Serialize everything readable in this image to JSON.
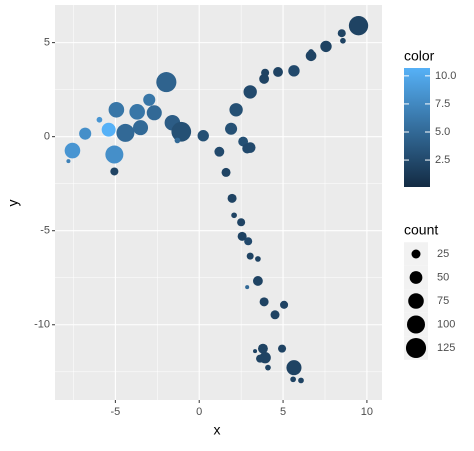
{
  "chart_data": {
    "type": "scatter",
    "x_label": "x",
    "y_label": "y",
    "xlim": [
      -8.6,
      10.9
    ],
    "ylim": [
      -14,
      7
    ],
    "xticks": [
      -5,
      0,
      5,
      10
    ],
    "yticks": [
      5,
      0,
      -5,
      -10
    ],
    "grid": true,
    "x": [
      -7.56,
      -7.8,
      -6.8,
      -5.95,
      -5.4,
      -4.94,
      -5.06,
      -5.06,
      -4.4,
      -3.7,
      -3.5,
      -2.98,
      -2.68,
      -1.96,
      -1.6,
      -1.07,
      -1.3,
      0.24,
      1.2,
      1.9,
      2.2,
      3.04,
      3.87,
      3.93,
      4.7,
      5.65,
      6.67,
      6.67,
      7.56,
      8.5,
      8.57,
      9.5,
      2.62,
      2.86,
      3.04,
      1.6,
      1.96,
      2.08,
      2.5,
      2.56,
      2.92,
      3.04,
      3.5,
      3.5,
      2.86,
      3.87,
      5.06,
      4.52,
      3.33,
      3.8,
      3.93,
      4.1,
      4.94,
      3.63,
      5.65,
      5.6,
      6.07
    ],
    "y": [
      -0.74,
      -1.3,
      0.16,
      0.9,
      0.37,
      1.43,
      -0.95,
      -1.85,
      0.2,
      1.32,
      0.48,
      1.96,
      1.27,
      2.9,
      0.74,
      0.26,
      -0.2,
      0.05,
      -0.8,
      0.42,
      1.43,
      2.38,
      3.07,
      3.4,
      3.44,
      3.5,
      4.3,
      4.5,
      4.8,
      5.5,
      5.1,
      5.9,
      -0.26,
      -0.63,
      -0.58,
      -1.9,
      -3.28,
      -4.18,
      -4.55,
      -5.3,
      -5.56,
      -6.35,
      -6.5,
      -7.67,
      -8.0,
      -8.78,
      -8.94,
      -9.47,
      -11.4,
      -11.27,
      -11.75,
      -12.28,
      -11.27,
      -11.8,
      -12.28,
      -12.9,
      -12.96
    ],
    "count": [
      75,
      5,
      45,
      10,
      60,
      75,
      100,
      20,
      100,
      75,
      70,
      45,
      70,
      125,
      75,
      120,
      10,
      40,
      30,
      45,
      55,
      55,
      30,
      20,
      30,
      40,
      35,
      10,
      40,
      20,
      10,
      115,
      30,
      30,
      35,
      25,
      25,
      10,
      20,
      25,
      20,
      15,
      10,
      30,
      5,
      25,
      20,
      25,
      5,
      30,
      40,
      10,
      20,
      20,
      70,
      10,
      10
    ],
    "color": [
      8.5,
      7,
      8,
      8.5,
      10.7,
      6,
      8,
      2,
      5,
      6,
      5,
      6,
      5,
      4.5,
      4,
      3,
      5,
      3,
      2.5,
      3,
      3,
      2.5,
      2,
      2,
      2,
      2.5,
      2,
      2,
      2,
      2,
      2,
      2,
      3,
      2.5,
      2.5,
      2,
      2,
      2,
      2,
      2,
      2.5,
      2,
      2,
      2,
      5,
      2,
      2,
      2,
      2,
      2,
      2,
      2,
      2,
      2,
      2,
      2,
      2
    ],
    "color_legend": {
      "title": "color",
      "low": "#132B43",
      "high": "#56B1F7",
      "lim": [
        0.1,
        10.7
      ],
      "ticks": [
        {
          "value": 10,
          "label": "10.0"
        },
        7.5,
        {
          "value": 5,
          "label": "5.0"
        },
        2.5
      ]
    },
    "size_legend": {
      "title": "count",
      "ticks": [
        25,
        50,
        75,
        100,
        125
      ]
    }
  }
}
